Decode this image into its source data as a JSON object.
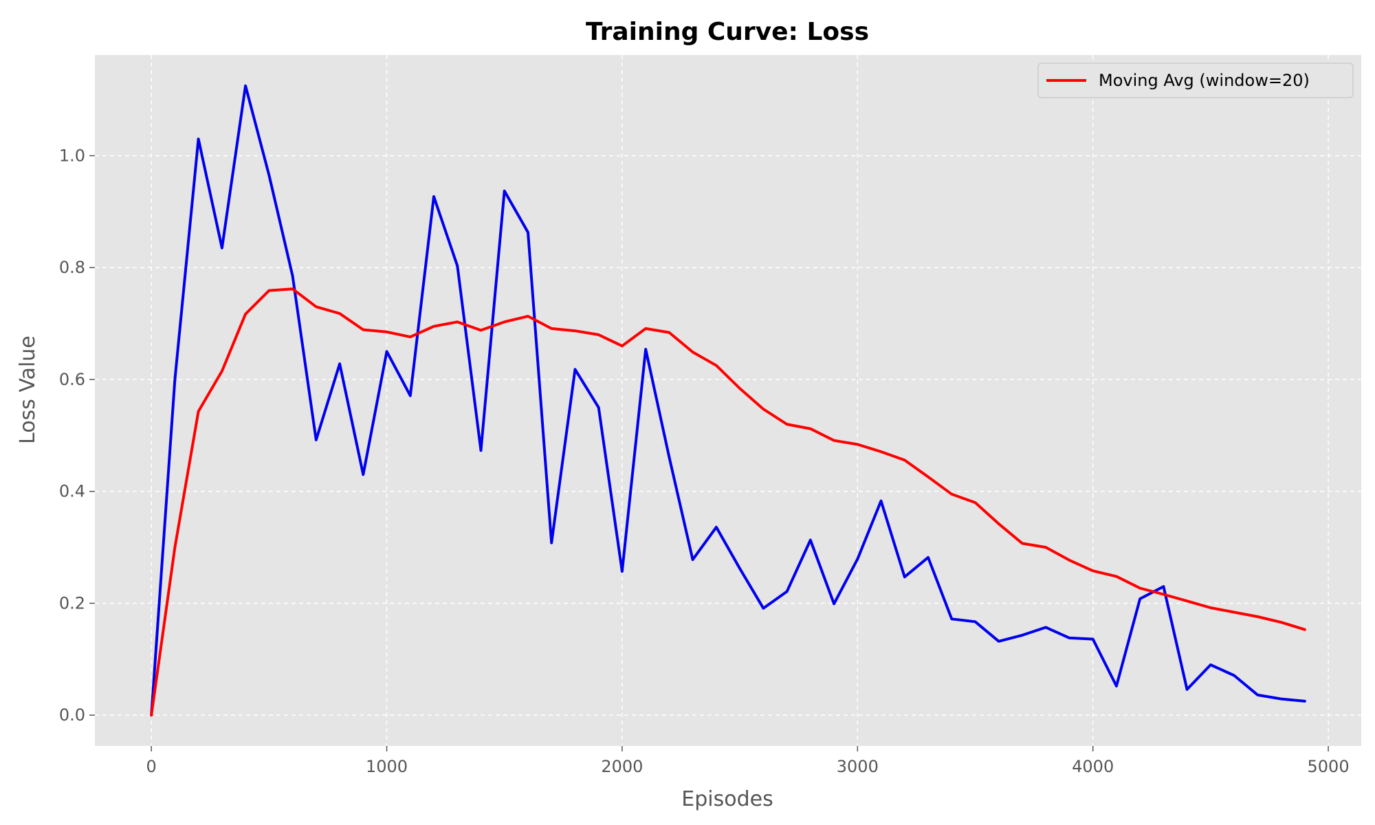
{
  "chart_data": {
    "type": "line",
    "title": "Training Curve: Loss",
    "xlabel": "Episodes",
    "ylabel": "Loss Value",
    "xlim": [
      -240,
      5140
    ],
    "ylim": [
      -0.055,
      1.18
    ],
    "xticks": [
      0,
      1000,
      2000,
      3000,
      4000,
      5000
    ],
    "xtick_labels": [
      "0",
      "1000",
      "2000",
      "3000",
      "4000",
      "5000"
    ],
    "yticks": [
      0.0,
      0.2,
      0.4,
      0.6,
      0.8,
      1.0
    ],
    "ytick_labels": [
      "0.0",
      "0.2",
      "0.4",
      "0.6",
      "0.8",
      "1.0"
    ],
    "grid": true,
    "legend_position": "top-right",
    "x": [
      0,
      100,
      200,
      300,
      400,
      500,
      600,
      700,
      800,
      900,
      1000,
      1100,
      1200,
      1300,
      1400,
      1500,
      1600,
      1700,
      1800,
      1900,
      2000,
      2100,
      2200,
      2300,
      2400,
      2500,
      2600,
      2700,
      2800,
      2900,
      3000,
      3100,
      3200,
      3300,
      3400,
      3500,
      3600,
      3700,
      3800,
      3900,
      4000,
      4100,
      4200,
      4300,
      4400,
      4500,
      4600,
      4700,
      4800,
      4900
    ],
    "series": [
      {
        "color": "#0000ee",
        "in_legend": false,
        "values": [
          0.0,
          0.6,
          1.03,
          0.835,
          1.125,
          0.965,
          0.785,
          0.492,
          0.628,
          0.43,
          0.65,
          0.571,
          0.927,
          0.803,
          0.473,
          0.937,
          0.863,
          0.308,
          0.618,
          0.55,
          0.257,
          0.654,
          0.461,
          0.278,
          0.336,
          0.262,
          0.191,
          0.221,
          0.313,
          0.199,
          0.279,
          0.383,
          0.247,
          0.282,
          0.172,
          0.167,
          0.132,
          0.143,
          0.157,
          0.138,
          0.136,
          0.052,
          0.208,
          0.23,
          0.046,
          0.09,
          0.071,
          0.036,
          0.029,
          0.025
        ]
      },
      {
        "name": "Moving Avg (window=20)",
        "color": "#ff0000",
        "in_legend": true,
        "values": [
          0.0,
          0.3,
          0.543,
          0.615,
          0.717,
          0.759,
          0.762,
          0.73,
          0.718,
          0.689,
          0.685,
          0.676,
          0.695,
          0.703,
          0.688,
          0.703,
          0.713,
          0.691,
          0.687,
          0.68,
          0.66,
          0.691,
          0.684,
          0.649,
          0.625,
          0.584,
          0.547,
          0.52,
          0.512,
          0.491,
          0.484,
          0.471,
          0.456,
          0.426,
          0.395,
          0.38,
          0.342,
          0.307,
          0.3,
          0.277,
          0.258,
          0.248,
          0.227,
          0.216,
          0.204,
          0.192,
          0.184,
          0.176,
          0.166,
          0.153
        ]
      }
    ]
  }
}
